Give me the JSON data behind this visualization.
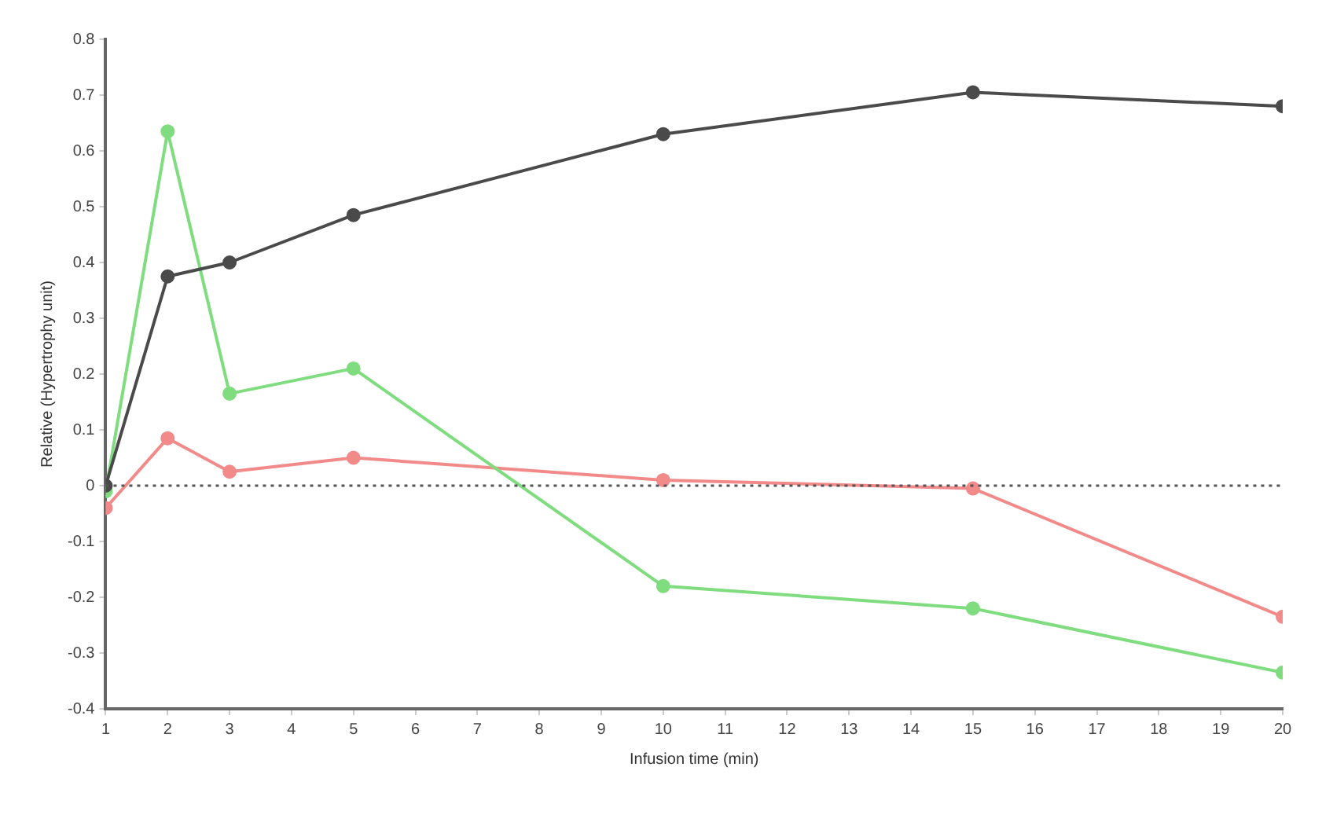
{
  "chart_data": {
    "type": "line",
    "xlabel": "Infusion time (min)",
    "ylabel": "Relative (Hypertrophy unit)",
    "x": [
      1,
      2,
      3,
      5,
      10,
      15,
      20
    ],
    "series": [
      {
        "color": "#4a4a4a",
        "values": [
          0,
          0.375,
          0.4,
          0.485,
          0.63,
          0.705,
          0.68
        ]
      },
      {
        "color": "#7fdc7f",
        "values": [
          -0.01,
          0.635,
          0.165,
          0.21,
          -0.18,
          -0.22,
          -0.335
        ]
      },
      {
        "color": "#f28a8a",
        "values": [
          -0.04,
          0.085,
          0.025,
          0.05,
          0.01,
          -0.005,
          -0.235
        ]
      }
    ],
    "xlim": [
      1,
      20
    ],
    "xticks": [
      1,
      2,
      3,
      4,
      5,
      6,
      7,
      8,
      9,
      10,
      11,
      12,
      13,
      14,
      15,
      16,
      17,
      18,
      19,
      20
    ],
    "ylim": [
      -0.4,
      0.8
    ],
    "yticks": [
      -0.4,
      -0.3,
      -0.2,
      -0.1,
      0,
      0.1,
      0.2,
      0.3,
      0.4,
      0.5,
      0.6,
      0.7,
      0.8
    ],
    "ref_lines": [
      {
        "axis": "y",
        "value": 0,
        "color": "#555555",
        "line_style": "dotted"
      }
    ],
    "grid": false,
    "legend": false,
    "marker": "circle",
    "line_style": "solid"
  }
}
